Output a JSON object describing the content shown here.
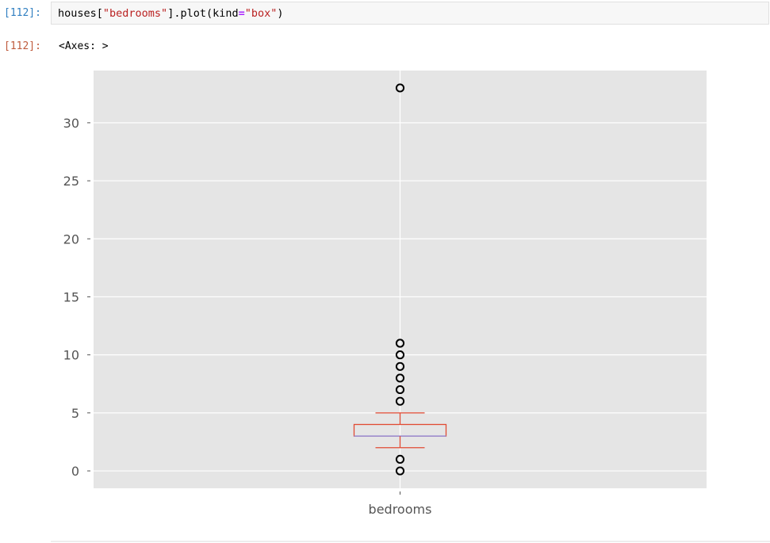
{
  "cell": {
    "in_prompt": "[112]:",
    "code_tokens": [
      {
        "text": "houses[",
        "kind": "fn"
      },
      {
        "text": "\"bedrooms\"",
        "kind": "str"
      },
      {
        "text": "].plot(kind",
        "kind": "fn"
      },
      {
        "text": "=",
        "kind": "op"
      },
      {
        "text": "\"box\"",
        "kind": "str"
      },
      {
        "text": ")",
        "kind": "fn"
      }
    ],
    "out_prompt": "[112]:",
    "output_text": "<Axes: >"
  },
  "colors": {
    "plot_bg": "#e5e5e5",
    "grid": "#ffffff",
    "box": "#e24a33",
    "median": "#988ed5",
    "flier": "#000000",
    "tick_label": "#555555"
  },
  "chart_data": {
    "type": "box",
    "categories": [
      "bedrooms"
    ],
    "ylim": [
      -1.5,
      34.5
    ],
    "yticks": [
      0,
      5,
      10,
      15,
      20,
      25,
      30
    ],
    "grid": true,
    "box": {
      "whisker_low": 2,
      "q1": 3,
      "median": 3,
      "q3": 4,
      "whisker_high": 5
    },
    "outliers": [
      0,
      1,
      6,
      7,
      8,
      9,
      10,
      11,
      33
    ]
  }
}
